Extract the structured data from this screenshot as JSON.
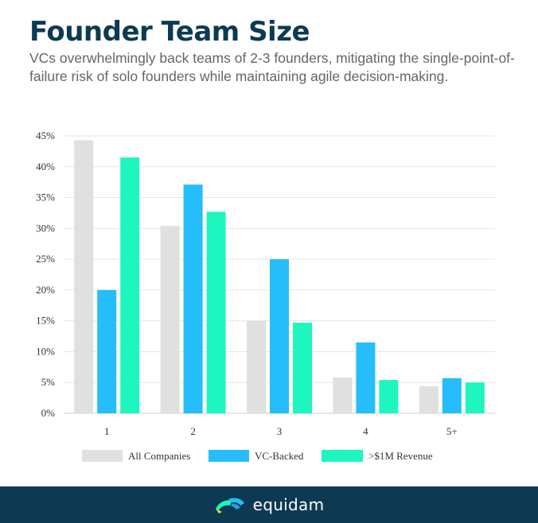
{
  "header": {
    "title": "Founder Team Size",
    "subtitle": "VCs overwhelmingly back teams of 2-3 founders, mitigating the single-point-of-failure risk of solo founders while maintaining agile decision-making."
  },
  "chart_data": {
    "type": "bar",
    "categories": [
      "1",
      "2",
      "3",
      "4",
      "5+"
    ],
    "series": [
      {
        "name": "All Companies",
        "color": "#e0e0e0",
        "values": [
          44.3,
          30.4,
          15.0,
          5.8,
          4.4
        ]
      },
      {
        "name": "VC-Backed",
        "color": "#25bdfa",
        "values": [
          20.0,
          37.1,
          25.0,
          11.5,
          5.7
        ]
      },
      {
        "name": ">$1M Revenue",
        "color": "#1ef6bf",
        "values": [
          41.5,
          32.7,
          14.7,
          5.4,
          5.0
        ]
      }
    ],
    "yticks": [
      "0%",
      "5%",
      "10%",
      "15%",
      "20%",
      "25%",
      "30%",
      "35%",
      "40%",
      "45%"
    ],
    "ylim": [
      0,
      45
    ],
    "ytick_step": 5,
    "grid": true,
    "legend_position": "bottom"
  },
  "footer": {
    "brand_name": "equidam",
    "logo_icon": "equidam-logo-icon",
    "background": "#0d3a52"
  }
}
